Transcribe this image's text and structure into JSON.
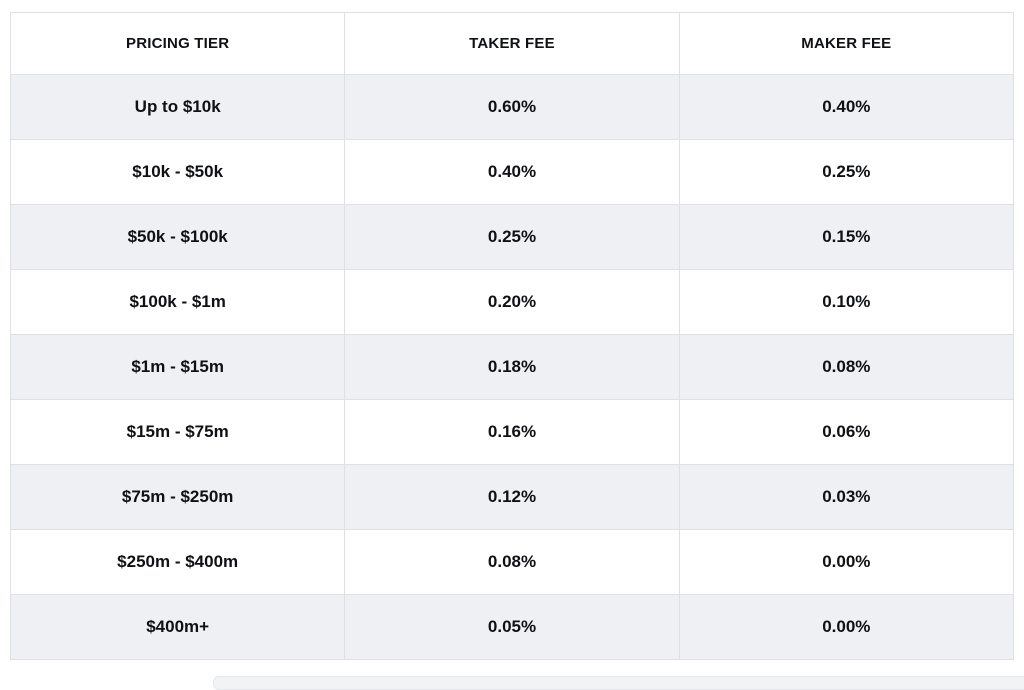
{
  "fee_table": {
    "columns": {
      "tier": "PRICING TIER",
      "taker": "TAKER FEE",
      "maker": "MAKER FEE"
    },
    "rows": [
      {
        "tier": "Up to $10k",
        "taker": "0.60%",
        "maker": "0.40%"
      },
      {
        "tier": "$10k - $50k",
        "taker": "0.40%",
        "maker": "0.25%"
      },
      {
        "tier": "$50k - $100k",
        "taker": "0.25%",
        "maker": "0.15%"
      },
      {
        "tier": "$100k - $1m",
        "taker": "0.20%",
        "maker": "0.10%"
      },
      {
        "tier": "$1m - $15m",
        "taker": "0.18%",
        "maker": "0.08%"
      },
      {
        "tier": "$15m - $75m",
        "taker": "0.16%",
        "maker": "0.06%"
      },
      {
        "tier": "$75m - $250m",
        "taker": "0.12%",
        "maker": "0.03%"
      },
      {
        "tier": "$250m - $400m",
        "taker": "0.08%",
        "maker": "0.00%"
      },
      {
        "tier": "$400m+",
        "taker": "0.05%",
        "maker": "0.00%"
      }
    ],
    "colors": {
      "row_stripe": "#eef0f3",
      "row_plain": "#ffffff",
      "border_inner": "#dee0e4",
      "border_outer": "#d2d4d9",
      "text": "#0f1114"
    }
  }
}
